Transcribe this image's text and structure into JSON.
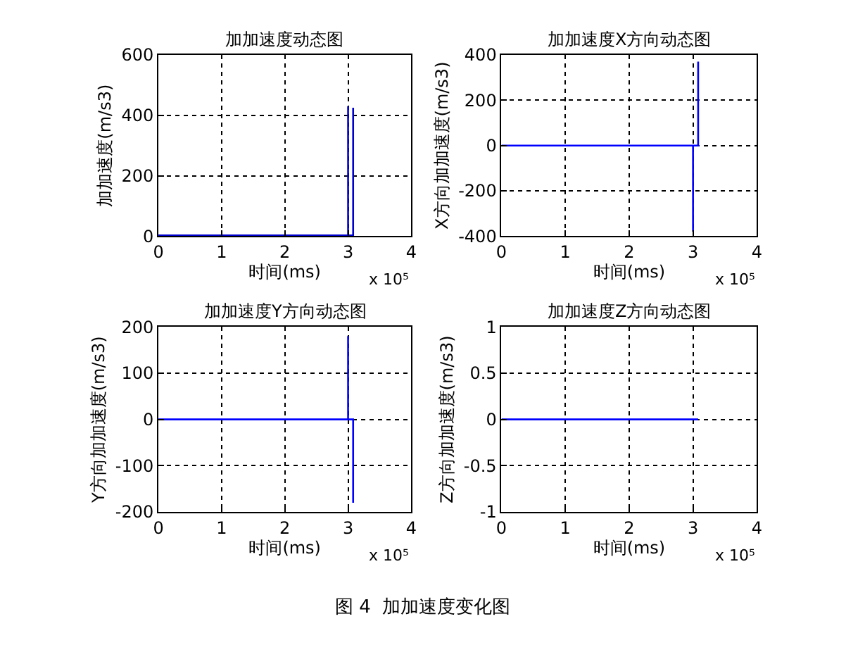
{
  "chart_data": [
    {
      "type": "line",
      "title": "加加速度动态图",
      "xlabel": "时间(ms)",
      "ylabel": "加加速度(m/s3)",
      "xlim": [
        0,
        4
      ],
      "xticks": [
        0,
        1,
        2,
        3,
        4
      ],
      "ylim": [
        0,
        600
      ],
      "yticks": [
        0,
        200,
        400,
        600
      ],
      "grid": true,
      "line_style": "solid",
      "annotations": [
        "x 10⁵"
      ],
      "series": [
        {
          "color": "#0000cc",
          "x": [
            0,
            3,
            3,
            3,
            3.08,
            3.08,
            3.08
          ],
          "values": [
            3,
            3,
            430,
            3,
            3,
            425,
            0
          ]
        }
      ]
    },
    {
      "type": "line",
      "title": "加加速度X方向动态图",
      "xlabel": "时间(ms)",
      "ylabel": "X方向加加速度(m/s3)",
      "xlim": [
        0,
        4
      ],
      "xticks": [
        0,
        1,
        2,
        3,
        4
      ],
      "ylim": [
        -400,
        400
      ],
      "yticks": [
        -400,
        -200,
        0,
        200,
        400
      ],
      "grid": true,
      "line_style": "solid",
      "annotations": [
        "x 10⁵"
      ],
      "series": [
        {
          "color": "#0000ff",
          "x": [
            0,
            3,
            3,
            3,
            3.08,
            3.08
          ],
          "values": [
            0,
            0,
            -380,
            0,
            0,
            370
          ]
        }
      ]
    },
    {
      "type": "line",
      "title": "加加速度Y方向动态图",
      "xlabel": "时间(ms)",
      "ylabel": "Y方向加加速度(m/s3)",
      "xlim": [
        0,
        4
      ],
      "xticks": [
        0,
        1,
        2,
        3,
        4
      ],
      "ylim": [
        -200,
        200
      ],
      "yticks": [
        -200,
        -100,
        0,
        100,
        200
      ],
      "grid": true,
      "line_style": "solid",
      "annotations": [
        "x 10⁵"
      ],
      "series": [
        {
          "color": "#0000ff",
          "x": [
            0,
            3,
            3,
            3,
            3.08,
            3.08
          ],
          "values": [
            0,
            0,
            180,
            0,
            0,
            -180
          ]
        }
      ]
    },
    {
      "type": "line",
      "title": "加加速度Z方向动态图",
      "xlabel": "时间(ms)",
      "ylabel": "Z方向加加速度(m/s3)",
      "xlim": [
        0,
        4
      ],
      "xticks": [
        0,
        1,
        2,
        3,
        4
      ],
      "ylim": [
        -1,
        1
      ],
      "yticks": [
        -1,
        -0.5,
        0,
        0.5,
        1
      ],
      "grid": true,
      "line_style": "solid",
      "annotations": [
        "x 10⁵",
        "图 4  加加速度变化图"
      ],
      "series": [
        {
          "color": "#0000ff",
          "x": [
            0,
            3.08
          ],
          "values": [
            0,
            0
          ]
        }
      ]
    }
  ]
}
